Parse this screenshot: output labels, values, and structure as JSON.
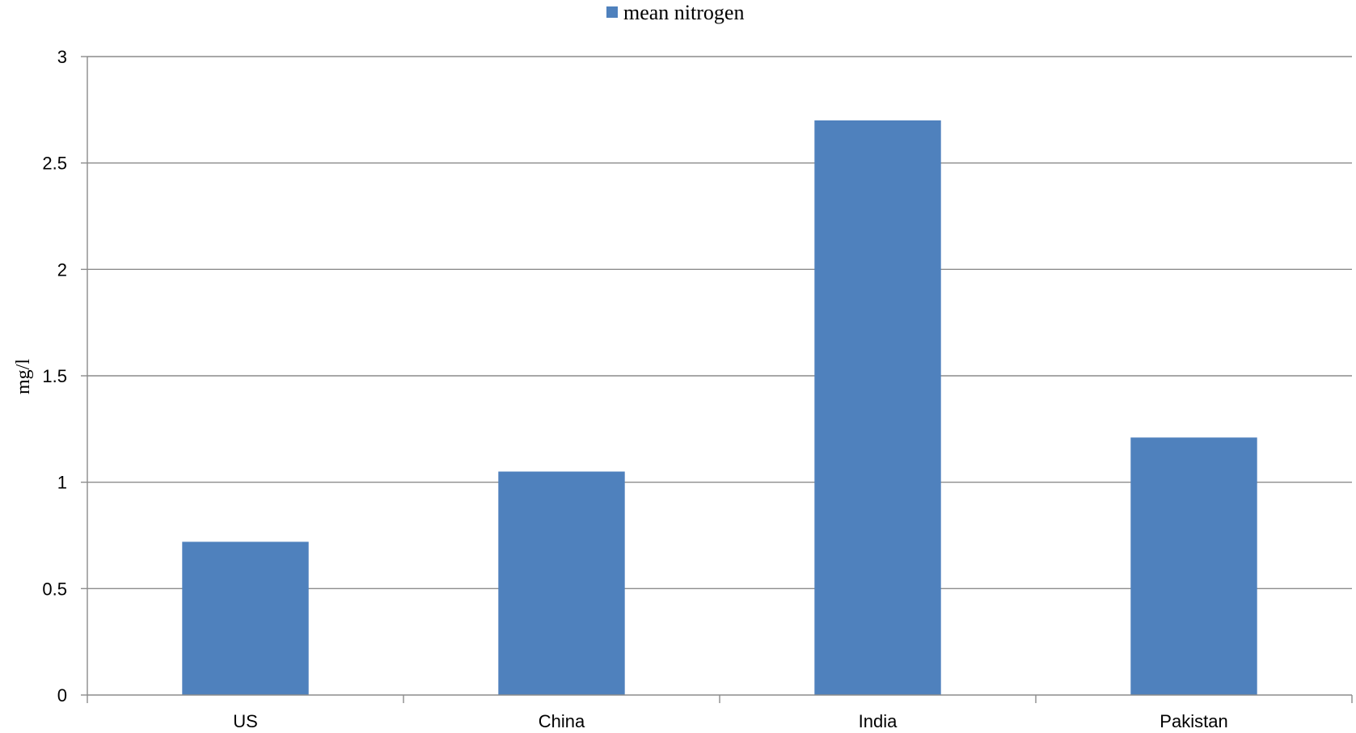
{
  "chart_data": {
    "type": "bar",
    "categories": [
      "US",
      "China",
      "India",
      "Pakistan"
    ],
    "series": [
      {
        "name": "mean nitrogen",
        "values": [
          0.72,
          1.05,
          2.7,
          1.21
        ],
        "color": "#4f81bd"
      }
    ],
    "xlabel": "",
    "ylabel": "mg/l",
    "ylim": [
      0,
      3
    ],
    "yticks": [
      0,
      0.5,
      1,
      1.5,
      2,
      2.5,
      3
    ],
    "ytick_labels": [
      "0",
      "0.5",
      "1",
      "1.5",
      "2",
      "2.5",
      "3"
    ],
    "grid": true,
    "legend_position": "top-center"
  }
}
